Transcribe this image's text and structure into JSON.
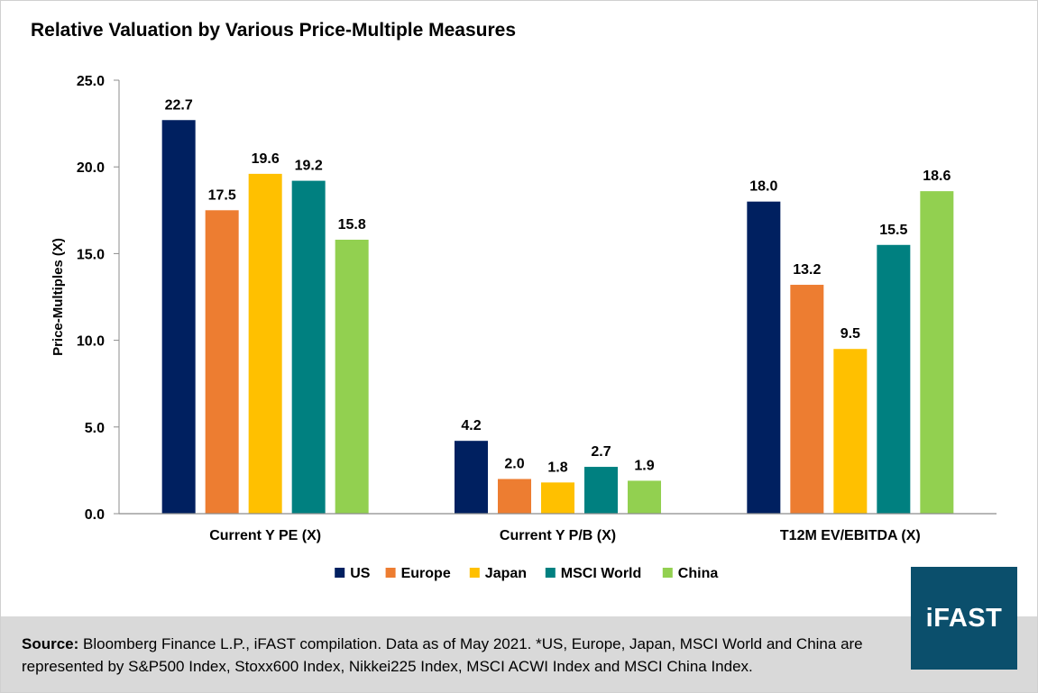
{
  "chart_data": {
    "type": "bar",
    "title": "Relative Valuation by Various Price-Multiple Measures",
    "xlabel": "",
    "ylabel": "Price-Multiples (X)",
    "ylim": [
      0,
      25
    ],
    "yticks": [
      "0.0",
      "5.0",
      "10.0",
      "15.0",
      "20.0",
      "25.0"
    ],
    "categories": [
      "Current Y PE (X)",
      "Current Y P/B (X)",
      "T12M EV/EBITDA (X)"
    ],
    "series": [
      {
        "name": "US",
        "color": "#002060",
        "values": [
          22.7,
          4.2,
          18.0
        ],
        "labels": [
          "22.7",
          "4.2",
          "18.0"
        ]
      },
      {
        "name": "Europe",
        "color": "#ed7d31",
        "values": [
          17.5,
          2.0,
          13.2
        ],
        "labels": [
          "17.5",
          "2.0",
          "13.2"
        ]
      },
      {
        "name": "Japan",
        "color": "#ffc000",
        "values": [
          19.6,
          1.8,
          9.5
        ],
        "labels": [
          "19.6",
          "1.8",
          "9.5"
        ]
      },
      {
        "name": "MSCI World",
        "color": "#008080",
        "values": [
          19.2,
          2.7,
          15.5
        ],
        "labels": [
          "19.2",
          "2.7",
          "15.5"
        ]
      },
      {
        "name": "China",
        "color": "#92d050",
        "values": [
          15.8,
          1.9,
          18.6
        ],
        "labels": [
          "15.8",
          "1.9",
          "18.6"
        ]
      }
    ],
    "legend": "bottom"
  },
  "source": {
    "label": "Source:",
    "text": " Bloomberg Finance L.P., iFAST compilation. Data as of May 2021. *US, Europe, Japan, MSCI World and China are represented by S&P500 Index, Stoxx600 Index, Nikkei225 Index, MSCI ACWI Index and MSCI China Index."
  },
  "logo": {
    "text": "iFAST"
  }
}
